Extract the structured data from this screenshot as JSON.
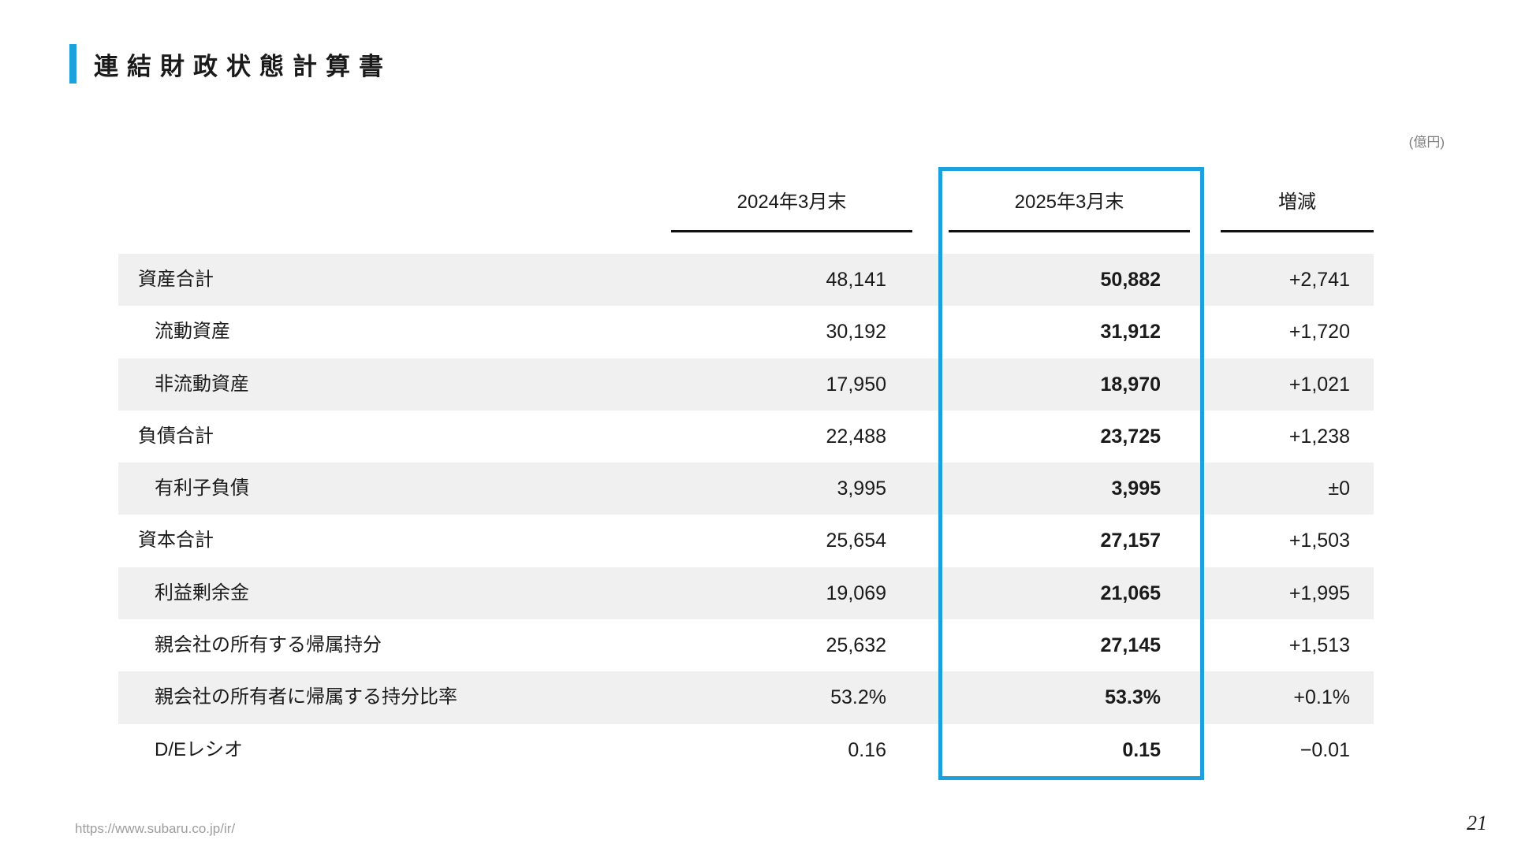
{
  "slide": {
    "title": "連結財政状態計算書",
    "unit_note": "(億円)",
    "footer_url": "https://www.subaru.co.jp/ir/",
    "page_number": "21",
    "accent_color": "#1da1dc",
    "stripe_color": "#f0f0f0"
  },
  "table": {
    "columns": [
      "2024年3月末",
      "2025年3月末",
      "増減"
    ],
    "highlighted_column": "2025年3月末",
    "rows": [
      {
        "label": "資産合計",
        "indent": false,
        "fy2024": "48,141",
        "fy2025": "50,882",
        "change": "+2,741"
      },
      {
        "label": "流動資産",
        "indent": true,
        "fy2024": "30,192",
        "fy2025": "31,912",
        "change": "+1,720"
      },
      {
        "label": "非流動資産",
        "indent": true,
        "fy2024": "17,950",
        "fy2025": "18,970",
        "change": "+1,021"
      },
      {
        "label": "負債合計",
        "indent": false,
        "fy2024": "22,488",
        "fy2025": "23,725",
        "change": "+1,238"
      },
      {
        "label": "有利子負債",
        "indent": true,
        "fy2024": "3,995",
        "fy2025": "3,995",
        "change": "±0"
      },
      {
        "label": "資本合計",
        "indent": false,
        "fy2024": "25,654",
        "fy2025": "27,157",
        "change": "+1,503"
      },
      {
        "label": "利益剰余金",
        "indent": true,
        "fy2024": "19,069",
        "fy2025": "21,065",
        "change": "+1,995"
      },
      {
        "label": "親会社の所有する帰属持分",
        "indent": true,
        "fy2024": "25,632",
        "fy2025": "27,145",
        "change": "+1,513"
      },
      {
        "label": "親会社の所有者に帰属する持分比率",
        "indent": true,
        "fy2024": "53.2%",
        "fy2025": "53.3%",
        "change": "+0.1%"
      },
      {
        "label": "D/Eレシオ",
        "indent": true,
        "fy2024": "0.16",
        "fy2025": "0.15",
        "change": "−0.01"
      }
    ]
  },
  "chart_data": {
    "type": "table",
    "title": "連結財政状態計算書",
    "unit": "億円",
    "categories": [
      "資産合計",
      "流動資産",
      "非流動資産",
      "負債合計",
      "有利子負債",
      "資本合計",
      "利益剰余金",
      "親会社の所有する帰属持分",
      "親会社の所有者に帰属する持分比率",
      "D/Eレシオ"
    ],
    "series": [
      {
        "name": "2024年3月末",
        "values": [
          48141,
          30192,
          17950,
          22488,
          3995,
          25654,
          19069,
          25632,
          "53.2%",
          0.16
        ]
      },
      {
        "name": "2025年3月末",
        "values": [
          50882,
          31912,
          18970,
          23725,
          3995,
          27157,
          21065,
          27145,
          "53.3%",
          0.15
        ]
      },
      {
        "name": "増減",
        "values": [
          2741,
          1720,
          1021,
          1238,
          0,
          1503,
          1995,
          1513,
          "+0.1%",
          -0.01
        ]
      }
    ]
  }
}
